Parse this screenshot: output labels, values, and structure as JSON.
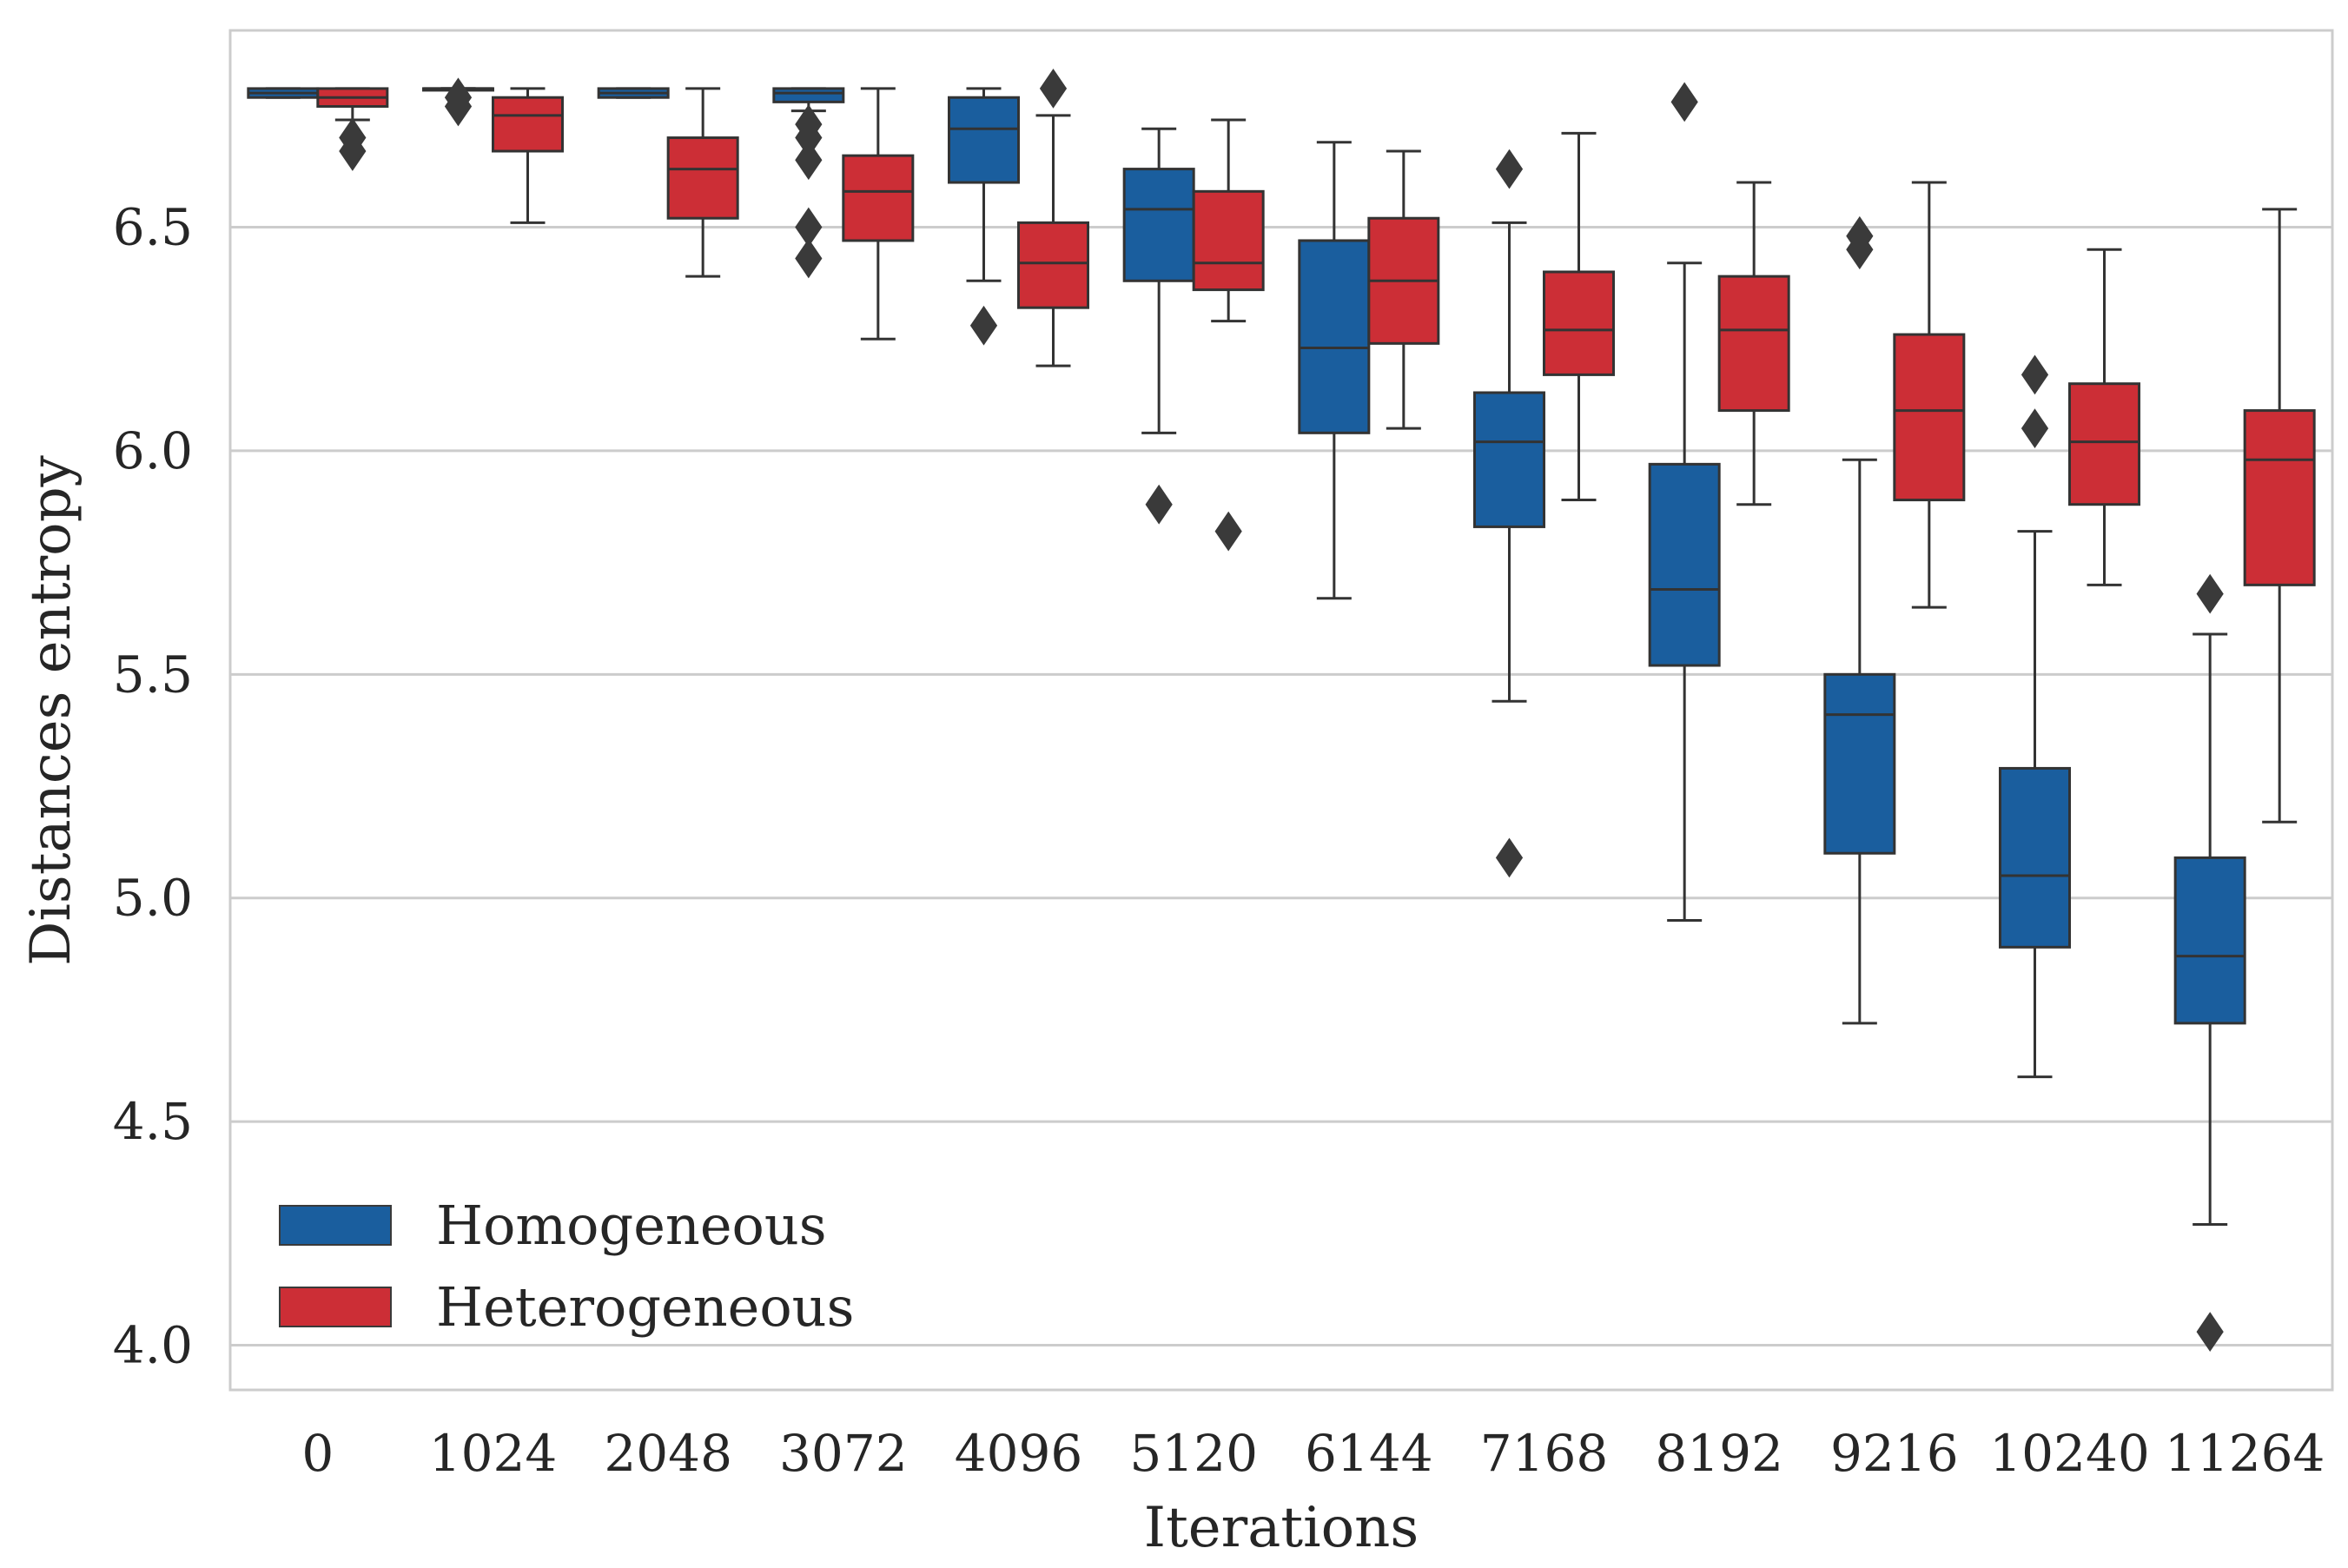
{
  "chart_data": {
    "type": "box",
    "xlabel": "Iterations",
    "ylabel": "Distances entropy",
    "categories": [
      "0",
      "1024",
      "2048",
      "3072",
      "4096",
      "5120",
      "6144",
      "7168",
      "8192",
      "9216",
      "10240",
      "11264"
    ],
    "ylim": [
      3.9,
      6.94
    ],
    "yticks": [
      "4.0",
      "4.5",
      "5.0",
      "5.5",
      "6.0",
      "6.5"
    ],
    "grid": true,
    "legend_position": "lower-left",
    "series": [
      {
        "name": "Homogeneous",
        "color": "#1a5e9e",
        "boxes": [
          {
            "whislo": 6.79,
            "q1": 6.79,
            "med": 6.8,
            "q3": 6.81,
            "whishi": 6.81,
            "fliers": []
          },
          {
            "whislo": 6.81,
            "q1": 6.81,
            "med": 6.81,
            "q3": 6.81,
            "whishi": 6.81,
            "fliers": [
              6.79,
              6.77
            ]
          },
          {
            "whislo": 6.79,
            "q1": 6.79,
            "med": 6.8,
            "q3": 6.81,
            "whishi": 6.81,
            "fliers": []
          },
          {
            "whislo": 6.76,
            "q1": 6.78,
            "med": 6.8,
            "q3": 6.81,
            "whishi": 6.81,
            "fliers": [
              6.73,
              6.7,
              6.65,
              6.5,
              6.43
            ]
          },
          {
            "whislo": 6.38,
            "q1": 6.6,
            "med": 6.72,
            "q3": 6.79,
            "whishi": 6.81,
            "fliers": [
              6.28
            ]
          },
          {
            "whislo": 6.04,
            "q1": 6.38,
            "med": 6.54,
            "q3": 6.63,
            "whishi": 6.72,
            "fliers": [
              5.88
            ]
          },
          {
            "whislo": 5.67,
            "q1": 6.04,
            "med": 6.23,
            "q3": 6.47,
            "whishi": 6.69,
            "fliers": []
          },
          {
            "whislo": 5.44,
            "q1": 5.83,
            "med": 6.02,
            "q3": 6.13,
            "whishi": 6.51,
            "fliers": [
              6.63,
              5.09
            ]
          },
          {
            "whislo": 4.95,
            "q1": 5.52,
            "med": 5.69,
            "q3": 5.97,
            "whishi": 6.42,
            "fliers": [
              6.78
            ]
          },
          {
            "whislo": 4.72,
            "q1": 5.1,
            "med": 5.41,
            "q3": 5.5,
            "whishi": 5.98,
            "fliers": [
              6.48,
              6.45
            ]
          },
          {
            "whislo": 4.6,
            "q1": 4.89,
            "med": 5.05,
            "q3": 5.29,
            "whishi": 5.82,
            "fliers": [
              6.17,
              6.05
            ]
          },
          {
            "whislo": 4.27,
            "q1": 4.72,
            "med": 4.87,
            "q3": 5.09,
            "whishi": 5.59,
            "fliers": [
              5.68,
              4.03
            ]
          }
        ]
      },
      {
        "name": "Heterogeneous",
        "color": "#cc2e36",
        "boxes": [
          {
            "whislo": 6.74,
            "q1": 6.77,
            "med": 6.79,
            "q3": 6.81,
            "whishi": 6.81,
            "fliers": [
              6.7,
              6.67
            ]
          },
          {
            "whislo": 6.51,
            "q1": 6.67,
            "med": 6.75,
            "q3": 6.79,
            "whishi": 6.81,
            "fliers": []
          },
          {
            "whislo": 6.39,
            "q1": 6.52,
            "med": 6.63,
            "q3": 6.7,
            "whishi": 6.81,
            "fliers": []
          },
          {
            "whislo": 6.25,
            "q1": 6.47,
            "med": 6.58,
            "q3": 6.66,
            "whishi": 6.81,
            "fliers": []
          },
          {
            "whislo": 6.19,
            "q1": 6.32,
            "med": 6.42,
            "q3": 6.51,
            "whishi": 6.75,
            "fliers": [
              6.81
            ]
          },
          {
            "whislo": 6.29,
            "q1": 6.36,
            "med": 6.42,
            "q3": 6.58,
            "whishi": 6.74,
            "fliers": [
              5.82
            ]
          },
          {
            "whislo": 6.05,
            "q1": 6.24,
            "med": 6.38,
            "q3": 6.52,
            "whishi": 6.67,
            "fliers": []
          },
          {
            "whislo": 5.89,
            "q1": 6.17,
            "med": 6.27,
            "q3": 6.4,
            "whishi": 6.71,
            "fliers": []
          },
          {
            "whislo": 5.88,
            "q1": 6.09,
            "med": 6.27,
            "q3": 6.39,
            "whishi": 6.6,
            "fliers": []
          },
          {
            "whislo": 5.65,
            "q1": 5.89,
            "med": 6.09,
            "q3": 6.26,
            "whishi": 6.6,
            "fliers": []
          },
          {
            "whislo": 5.7,
            "q1": 5.88,
            "med": 6.02,
            "q3": 6.15,
            "whishi": 6.45,
            "fliers": []
          },
          {
            "whislo": 5.17,
            "q1": 5.7,
            "med": 5.98,
            "q3": 6.09,
            "whishi": 6.54,
            "fliers": []
          }
        ]
      }
    ]
  }
}
